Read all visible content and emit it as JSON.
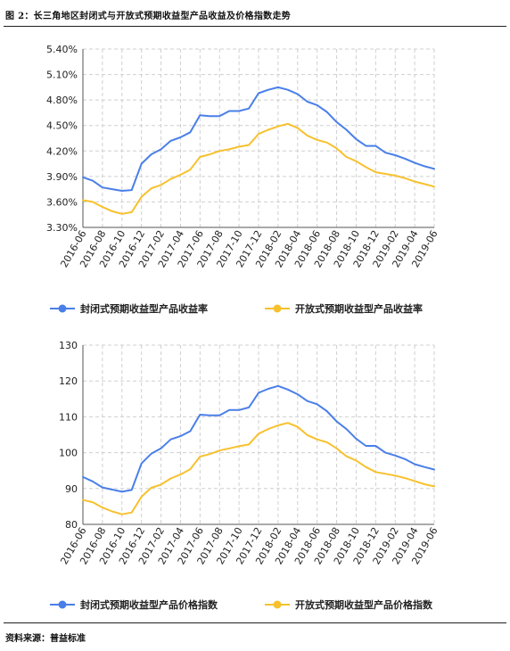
{
  "figure": {
    "title": "图 2：长三角地区封闭式与开放式预期收益型产品收益及价格指数走势",
    "source": "资料来源：普益标准"
  },
  "colors": {
    "closed": "#4a7fe8",
    "open": "#f7c12e",
    "grid": "#cfcfcf"
  },
  "chart_data": [
    {
      "type": "line",
      "title": "",
      "xlabel": "",
      "ylabel": "",
      "x": [
        "2016-06",
        "2016-07",
        "2016-08",
        "2016-09",
        "2016-10",
        "2016-11",
        "2016-12",
        "2017-01",
        "2017-02",
        "2017-03",
        "2017-04",
        "2017-05",
        "2017-06",
        "2017-07",
        "2017-08",
        "2017-09",
        "2017-10",
        "2017-11",
        "2017-12",
        "2018-01",
        "2018-02",
        "2018-03",
        "2018-04",
        "2018-05",
        "2018-06",
        "2018-07",
        "2018-08",
        "2018-09",
        "2018-10",
        "2018-11",
        "2018-12",
        "2019-01",
        "2019-02",
        "2019-03",
        "2019-04",
        "2019-05",
        "2019-06"
      ],
      "x_tick_labels": [
        "2016-06",
        "2016-08",
        "2016-10",
        "2016-12",
        "2017-02",
        "2017-04",
        "2017-06",
        "2017-08",
        "2017-10",
        "2017-12",
        "2018-02",
        "2018-04",
        "2018-06",
        "2018-08",
        "2018-10",
        "2018-12",
        "2019-02",
        "2019-04",
        "2019-06"
      ],
      "y_ticks": [
        "3.30%",
        "3.60%",
        "3.90%",
        "4.20%",
        "4.50%",
        "4.80%",
        "5.10%",
        "5.40%"
      ],
      "ylim": [
        3.3,
        5.4
      ],
      "grid": true,
      "legend_position": "bottom",
      "series": [
        {
          "name": "封闭式预期收益型产品收益率",
          "color_key": "closed",
          "values": [
            3.89,
            3.85,
            3.77,
            3.75,
            3.73,
            3.74,
            4.05,
            4.16,
            4.22,
            4.32,
            4.36,
            4.42,
            4.62,
            4.61,
            4.61,
            4.67,
            4.67,
            4.7,
            4.88,
            4.92,
            4.95,
            4.92,
            4.87,
            4.78,
            4.74,
            4.66,
            4.54,
            4.45,
            4.34,
            4.26,
            4.26,
            4.18,
            4.15,
            4.11,
            4.06,
            4.02,
            3.99
          ]
        },
        {
          "name": "开放式预期收益型产品收益率",
          "color_key": "open",
          "values": [
            3.62,
            3.6,
            3.54,
            3.49,
            3.46,
            3.48,
            3.66,
            3.76,
            3.8,
            3.87,
            3.92,
            3.98,
            4.13,
            4.16,
            4.2,
            4.22,
            4.25,
            4.27,
            4.4,
            4.45,
            4.49,
            4.52,
            4.47,
            4.38,
            4.33,
            4.3,
            4.23,
            4.13,
            4.08,
            4.01,
            3.95,
            3.93,
            3.91,
            3.88,
            3.84,
            3.81,
            3.78
          ]
        }
      ]
    },
    {
      "type": "line",
      "title": "",
      "xlabel": "",
      "ylabel": "",
      "x": [
        "2016-06",
        "2016-07",
        "2016-08",
        "2016-09",
        "2016-10",
        "2016-11",
        "2016-12",
        "2017-01",
        "2017-02",
        "2017-03",
        "2017-04",
        "2017-05",
        "2017-06",
        "2017-07",
        "2017-08",
        "2017-09",
        "2017-10",
        "2017-11",
        "2017-12",
        "2018-01",
        "2018-02",
        "2018-03",
        "2018-04",
        "2018-05",
        "2018-06",
        "2018-07",
        "2018-08",
        "2018-09",
        "2018-10",
        "2018-11",
        "2018-12",
        "2019-01",
        "2019-02",
        "2019-03",
        "2019-04",
        "2019-05",
        "2019-06"
      ],
      "x_tick_labels": [
        "2016-06",
        "2016-08",
        "2016-10",
        "2016-12",
        "2017-02",
        "2017-04",
        "2017-06",
        "2017-08",
        "2017-10",
        "2017-12",
        "2018-02",
        "2018-04",
        "2018-06",
        "2018-08",
        "2018-10",
        "2018-12",
        "2019-02",
        "2019-04",
        "2019-06"
      ],
      "y_ticks": [
        "80",
        "90",
        "100",
        "110",
        "120",
        "130"
      ],
      "ylim": [
        80,
        130
      ],
      "grid": true,
      "legend_position": "bottom",
      "series": [
        {
          "name": "封闭式预期收益型产品价格指数",
          "color_key": "closed",
          "values": [
            93.2,
            92.0,
            90.3,
            89.7,
            89.1,
            89.6,
            97.0,
            99.7,
            101.2,
            103.7,
            104.6,
            106.0,
            110.6,
            110.4,
            110.4,
            111.9,
            111.9,
            112.6,
            116.7,
            117.8,
            118.6,
            117.6,
            116.3,
            114.4,
            113.5,
            111.6,
            108.7,
            106.6,
            103.9,
            101.9,
            101.9,
            100.0,
            99.2,
            98.2,
            96.8,
            96.0,
            95.3
          ]
        },
        {
          "name": "开放式预期收益型产品价格指数",
          "color_key": "open",
          "values": [
            86.8,
            86.2,
            84.7,
            83.6,
            82.8,
            83.3,
            87.7,
            90.2,
            91.1,
            92.8,
            93.9,
            95.4,
            98.9,
            99.6,
            100.6,
            101.2,
            101.8,
            102.3,
            105.3,
            106.6,
            107.6,
            108.3,
            107.2,
            104.9,
            103.7,
            102.9,
            101.2,
            99.0,
            97.8,
            96.0,
            94.6,
            94.1,
            93.6,
            92.9,
            92.1,
            91.2,
            90.6
          ]
        }
      ]
    }
  ]
}
